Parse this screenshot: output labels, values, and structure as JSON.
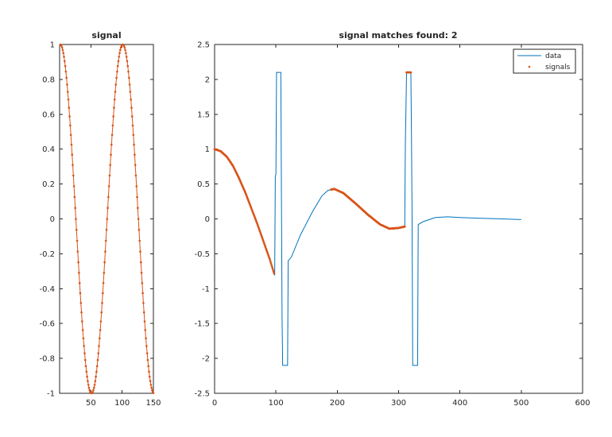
{
  "colors": {
    "data_line": "#0072BD",
    "signal_marker": "#D95319",
    "axes": "#262626",
    "background": "#ffffff"
  },
  "chart_data": [
    {
      "type": "line",
      "title": "signal",
      "xlabel": "",
      "ylabel": "",
      "xlim": [
        0,
        150
      ],
      "ylim": [
        -1,
        1
      ],
      "xticks": [
        50,
        100,
        150
      ],
      "xtick_labels": [
        "50",
        "100",
        "150"
      ],
      "yticks": [
        -1,
        -0.8,
        -0.6,
        -0.4,
        -0.2,
        0,
        0.2,
        0.4,
        0.6,
        0.8,
        1
      ],
      "ytick_labels": [
        "-1",
        "-0.8",
        "-0.6",
        "-0.4",
        "-0.2",
        "0",
        "0.2",
        "0.4",
        "0.6",
        "0.8",
        "1"
      ],
      "grid": false,
      "legend": false,
      "series": [
        {
          "style": "line-with-dot-markers",
          "color": "#D95319",
          "formula": "cos(2*pi*(x-1)/100)",
          "x_start": 1,
          "x_end": 150,
          "x_step": 1
        }
      ]
    },
    {
      "type": "line",
      "title": "signal matches found: 2",
      "xlabel": "",
      "ylabel": "",
      "xlim": [
        0,
        600
      ],
      "ylim": [
        -2.5,
        2.5
      ],
      "xticks": [
        0,
        100,
        200,
        300,
        400,
        500,
        600
      ],
      "xtick_labels": [
        "0",
        "100",
        "200",
        "300",
        "400",
        "500",
        "600"
      ],
      "yticks": [
        -2.5,
        -2,
        -1.5,
        -1,
        -0.5,
        0,
        0.5,
        1,
        1.5,
        2,
        2.5
      ],
      "ytick_labels": [
        "-2.5",
        "-2",
        "-1.5",
        "-1",
        "-0.5",
        "0",
        "0.5",
        "1",
        "1.5",
        "2",
        "2.5"
      ],
      "grid": false,
      "legend": {
        "placement": "top-right",
        "entries": [
          "data",
          "signals"
        ]
      },
      "series": [
        {
          "name": "data",
          "color": "#0072BD",
          "points": [
            [
              0,
              1.0
            ],
            [
              10,
              0.97
            ],
            [
              20,
              0.89
            ],
            [
              30,
              0.76
            ],
            [
              40,
              0.58
            ],
            [
              50,
              0.38
            ],
            [
              60,
              0.15
            ],
            [
              70,
              -0.08
            ],
            [
              80,
              -0.33
            ],
            [
              90,
              -0.58
            ],
            [
              98,
              -0.81
            ],
            [
              99,
              0.6
            ],
            [
              100,
              0.65
            ],
            [
              101,
              2.1
            ],
            [
              108,
              2.1
            ],
            [
              109,
              0.3
            ],
            [
              110,
              -1.4
            ],
            [
              111,
              -2.1
            ],
            [
              119,
              -2.1
            ],
            [
              120,
              -0.6
            ],
            [
              125,
              -0.55
            ],
            [
              140,
              -0.23
            ],
            [
              160,
              0.11
            ],
            [
              175,
              0.33
            ],
            [
              185,
              0.41
            ],
            [
              195,
              0.43
            ],
            [
              210,
              0.37
            ],
            [
              230,
              0.22
            ],
            [
              250,
              0.06
            ],
            [
              270,
              -0.08
            ],
            [
              285,
              -0.14
            ],
            [
              300,
              -0.13
            ],
            [
              310,
              -0.11
            ],
            [
              311,
              1.05
            ],
            [
              313,
              2.1
            ],
            [
              320,
              2.1
            ],
            [
              321,
              1.2
            ],
            [
              322,
              0.0
            ],
            [
              323,
              -2.1
            ],
            [
              331,
              -2.1
            ],
            [
              332,
              -0.08
            ],
            [
              340,
              -0.04
            ],
            [
              360,
              0.02
            ],
            [
              380,
              0.03
            ],
            [
              400,
              0.02
            ],
            [
              430,
              0.01
            ],
            [
              470,
              0.0
            ],
            [
              500,
              -0.01
            ]
          ]
        },
        {
          "name": "signals",
          "color": "#D95319",
          "style": "dot-markers",
          "segments": [
            {
              "formula": "data",
              "x_start": 0,
              "x_end": 97,
              "x_step": 1
            },
            {
              "formula": "data",
              "x_start": 190,
              "x_end": 310,
              "x_step": 1
            },
            {
              "formula": "constant",
              "value": 2.1,
              "x_start": 313,
              "x_end": 320,
              "x_step": 1
            }
          ]
        }
      ]
    }
  ]
}
